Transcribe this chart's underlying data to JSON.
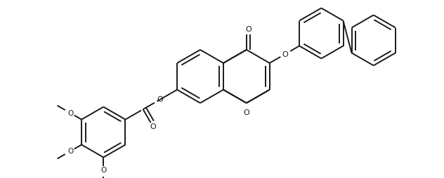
{
  "background_color": "#ffffff",
  "line_color": "#1a1a1a",
  "line_width": 1.4,
  "fig_width": 6.32,
  "fig_height": 2.54,
  "dpi": 100,
  "xlim": [
    0,
    6.32
  ],
  "ylim": [
    0,
    2.54
  ]
}
